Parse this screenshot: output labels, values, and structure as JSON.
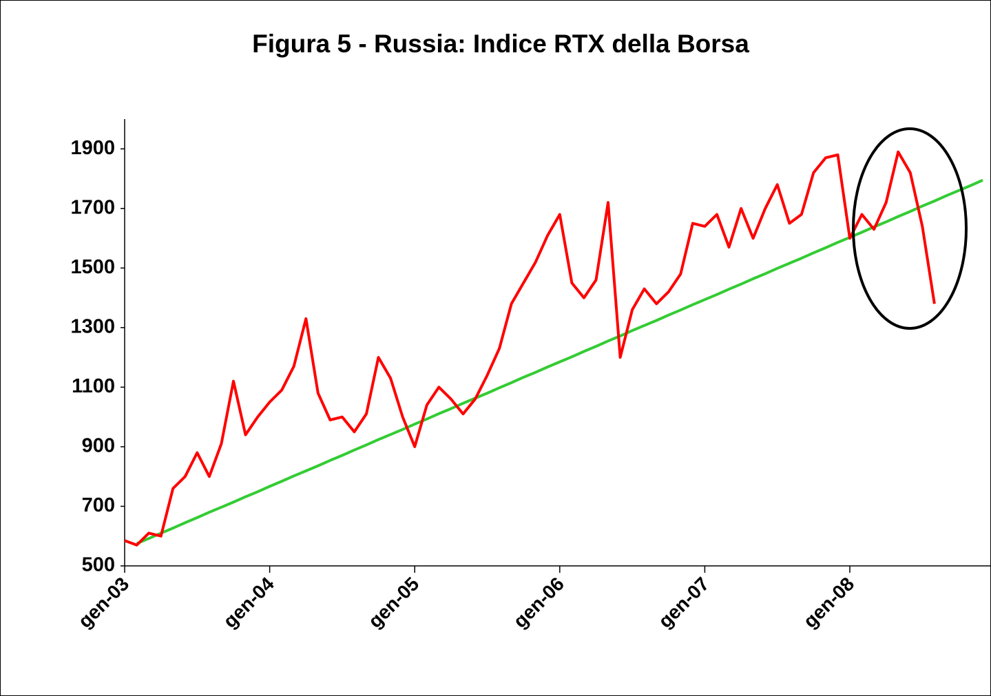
{
  "chart_data": {
    "type": "line",
    "title": "Figura 5 - Russia: Indice RTX della Borsa",
    "categories": [
      "gen-03",
      null,
      null,
      null,
      null,
      null,
      null,
      null,
      null,
      null,
      null,
      null,
      "gen-04",
      null,
      null,
      null,
      null,
      null,
      null,
      null,
      null,
      null,
      null,
      null,
      "gen-05",
      null,
      null,
      null,
      null,
      null,
      null,
      null,
      null,
      null,
      null,
      null,
      "gen-06",
      null,
      null,
      null,
      null,
      null,
      null,
      null,
      null,
      null,
      null,
      null,
      "gen-07",
      null,
      null,
      null,
      null,
      null,
      null,
      null,
      null,
      null,
      null,
      null,
      "gen-08",
      null,
      null,
      null,
      null,
      null,
      null,
      null,
      null,
      null,
      null,
      null
    ],
    "series": [
      {
        "color": "#ff0000",
        "values": [
          585,
          570,
          610,
          600,
          760,
          800,
          880,
          800,
          910,
          1120,
          940,
          1000,
          1050,
          1090,
          1170,
          1330,
          1080,
          990,
          1000,
          950,
          1010,
          1200,
          1130,
          1000,
          900,
          1040,
          1100,
          1060,
          1010,
          1060,
          1140,
          1230,
          1380,
          1450,
          1520,
          1610,
          1680,
          1450,
          1400,
          1460,
          1720,
          1200,
          1360,
          1430,
          1380,
          1420,
          1480,
          1650,
          1640,
          1680,
          1570,
          1700,
          1600,
          1700,
          1780,
          1650,
          1680,
          1820,
          1870,
          1880,
          1600,
          1680,
          1630,
          1720,
          1890,
          1820,
          1640,
          1380,
          null,
          null,
          null,
          null
        ]
      },
      {
        "color": "#33cc33",
        "values": [
          null,
          575,
          592,
          610,
          627,
          645,
          662,
          680,
          697,
          714,
          732,
          749,
          767,
          784,
          802,
          819,
          836,
          854,
          871,
          889,
          906,
          924,
          941,
          958,
          976,
          993,
          1011,
          1028,
          1046,
          1063,
          1080,
          1098,
          1115,
          1133,
          1150,
          1168,
          1185,
          1202,
          1220,
          1237,
          1255,
          1272,
          1290,
          1307,
          1324,
          1342,
          1359,
          1377,
          1394,
          1411,
          1429,
          1446,
          1464,
          1481,
          1499,
          1516,
          1533,
          1551,
          1568,
          1586,
          1603,
          1620,
          1638,
          1655,
          1673,
          1690,
          1708,
          1725,
          1743,
          1760,
          1777,
          1795
        ]
      }
    ],
    "ylim": [
      500,
      2000
    ],
    "yticks": [
      500,
      700,
      900,
      1100,
      1300,
      1500,
      1700,
      1900
    ]
  }
}
